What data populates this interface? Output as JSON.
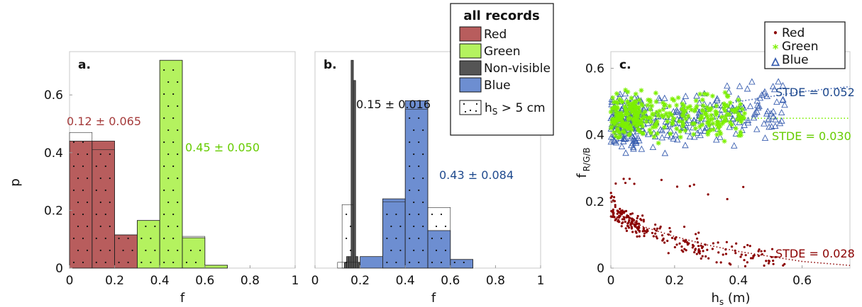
{
  "colors": {
    "red": "#b85d5d",
    "green": "#b4f25f",
    "dark": "#555555",
    "blue": "#6d8ed1",
    "redText": "#a53b3b",
    "greenText": "#66cc00",
    "blueText": "#1f4a8e",
    "scatterRed": "#8b0000",
    "scatterGreen": "#7cf000",
    "scatterBlue": "#3a5fb0"
  },
  "legend_main": {
    "title": "all records",
    "items": [
      "Red",
      "Green",
      "Non-visible",
      "Blue"
    ],
    "hs_prefix": "h",
    "hs_sub": "S",
    "hs_suffix": " > 5 cm"
  },
  "legend_c": {
    "items": [
      "Red",
      "Green",
      "Blue"
    ],
    "markers": [
      "•",
      "*",
      "△"
    ]
  },
  "chart_data": [
    {
      "type": "bar",
      "panel_label": "a.",
      "xlabel": "f",
      "ylabel": "p",
      "xlim": [
        0,
        1
      ],
      "ylim": [
        0,
        0.75
      ],
      "xticks": [
        "0",
        "0.2",
        "0.4",
        "0.6",
        "0.8",
        "1"
      ],
      "yticks": [
        "0",
        "0.2",
        "0.4",
        "0.6"
      ],
      "series": [
        {
          "name": "Red",
          "bins": [
            [
              0,
              0.1,
              0.44
            ],
            [
              0.1,
              0.2,
              0.44
            ],
            [
              0.2,
              0.3,
              0.115
            ]
          ]
        },
        {
          "name": "Green",
          "bins": [
            [
              0.3,
              0.4,
              0.165
            ],
            [
              0.4,
              0.5,
              0.72
            ],
            [
              0.5,
              0.6,
              0.105
            ],
            [
              0.6,
              0.7,
              0.01
            ]
          ]
        }
      ],
      "hs_outline": [
        [
          0,
          0.1,
          0.47
        ],
        [
          0.1,
          0.2,
          0.41
        ],
        [
          0.2,
          0.3,
          0.115
        ],
        [
          0.3,
          0.4,
          0.165
        ],
        [
          0.4,
          0.5,
          0.72
        ],
        [
          0.5,
          0.6,
          0.11
        ],
        [
          0.6,
          0.7,
          0.01
        ]
      ],
      "annotations": [
        {
          "text": "0.12 ± 0.065",
          "series": "Red"
        },
        {
          "text": "0.45 ± 0.050",
          "series": "Green"
        }
      ]
    },
    {
      "type": "bar",
      "panel_label": "b.",
      "xlabel": "f",
      "xlim": [
        0,
        1
      ],
      "ylim": [
        0,
        0.75
      ],
      "xticks": [
        "0",
        "0.2",
        "0.4",
        "0.6",
        "0.8",
        "1"
      ],
      "series": [
        {
          "name": "Non-visible",
          "bins": [
            [
              0.13,
              0.14,
              0.02
            ],
            [
              0.14,
              0.15,
              0.04
            ],
            [
              0.15,
              0.16,
              0.04
            ],
            [
              0.16,
              0.17,
              0.72
            ],
            [
              0.17,
              0.18,
              0.65
            ],
            [
              0.18,
              0.19,
              0.04
            ],
            [
              0.19,
              0.2,
              0.02
            ]
          ]
        },
        {
          "name": "Blue",
          "bins": [
            [
              0.2,
              0.3,
              0.04
            ],
            [
              0.3,
              0.4,
              0.24
            ],
            [
              0.4,
              0.5,
              0.58
            ],
            [
              0.5,
              0.6,
              0.13
            ],
            [
              0.6,
              0.7,
              0.03
            ]
          ]
        }
      ],
      "hs_outline": [
        [
          0.1,
          0.2,
          0.02
        ],
        [
          0.12,
          0.17,
          0.22
        ],
        [
          0.3,
          0.4,
          0.23
        ],
        [
          0.4,
          0.5,
          0.55
        ],
        [
          0.5,
          0.6,
          0.21
        ],
        [
          0.6,
          0.7,
          0.03
        ]
      ],
      "annotations": [
        {
          "text": "0.15 ± 0.016",
          "series": "Non-visible"
        },
        {
          "text": "0.43 ± 0.084",
          "series": "Blue"
        }
      ]
    },
    {
      "type": "scatter",
      "panel_label": "c.",
      "xlabel_prefix": "h",
      "xlabel_sub": "s",
      "xlabel_suffix": " (m)",
      "ylabel_prefix": "f",
      "ylabel_sub": "R/G/B",
      "xlim": [
        0,
        0.75
      ],
      "ylim": [
        0,
        0.65
      ],
      "xticks": [
        "0",
        "0.2",
        "0.4",
        "0.6"
      ],
      "yticks": [
        "0",
        "0.2",
        "0.4",
        "0.6"
      ],
      "fits": [
        {
          "series": "Blue",
          "label": "STDE = 0.052",
          "x": [
            0,
            0.1,
            0.2,
            0.3,
            0.4,
            0.5,
            0.6,
            0.75
          ],
          "y": [
            0.42,
            0.44,
            0.46,
            0.48,
            0.5,
            0.515,
            0.53,
            0.545
          ]
        },
        {
          "series": "Green",
          "label": "STDE = 0.030",
          "x": [
            0,
            0.1,
            0.2,
            0.3,
            0.4,
            0.5,
            0.6,
            0.75
          ],
          "y": [
            0.45,
            0.45,
            0.45,
            0.45,
            0.45,
            0.45,
            0.45,
            0.45
          ]
        },
        {
          "series": "Red",
          "label": "STDE = 0.028",
          "x": [
            0,
            0.05,
            0.1,
            0.2,
            0.3,
            0.4,
            0.5,
            0.6,
            0.75
          ],
          "y": [
            0.17,
            0.15,
            0.125,
            0.095,
            0.07,
            0.05,
            0.035,
            0.02,
            0.008
          ]
        }
      ],
      "series": [
        {
          "name": "Red",
          "n": 260,
          "xrange": [
            0,
            0.55
          ],
          "note": "decreasing cloud ~0.17 at 0 to ~0.03 at 0.5"
        },
        {
          "name": "Green",
          "n": 330,
          "xrange": [
            0,
            0.42
          ],
          "note": "band ~0.38-0.62"
        },
        {
          "name": "Blue",
          "n": 330,
          "xrange": [
            0,
            0.55
          ],
          "note": "band ~0.30-0.61"
        }
      ]
    }
  ]
}
